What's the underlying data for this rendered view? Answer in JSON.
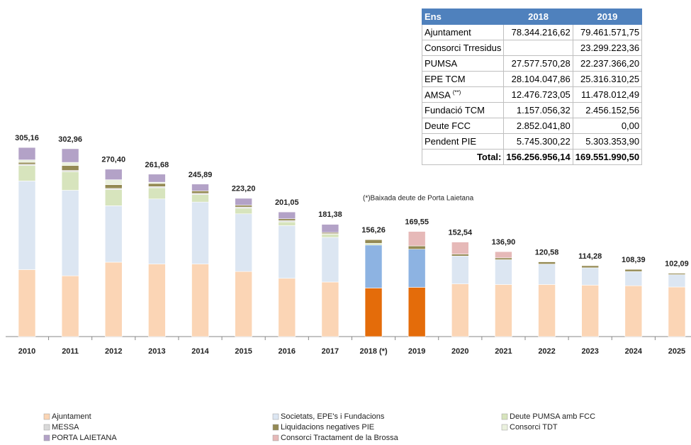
{
  "chart_data": {
    "type": "stacked-bar",
    "categories": [
      "2010",
      "2011",
      "2012",
      "2013",
      "2014",
      "2015",
      "2016",
      "2017",
      "2018 (*)",
      "2019",
      "2020",
      "2021",
      "2022",
      "2023",
      "2024",
      "2025"
    ],
    "totals": [
      305.16,
      302.96,
      270.4,
      261.68,
      245.89,
      223.2,
      201.05,
      181.38,
      156.26,
      169.55,
      152.54,
      136.9,
      120.58,
      114.28,
      108.39,
      102.09
    ],
    "total_labels": [
      "305,16",
      "302,96",
      "270,40",
      "261,68",
      "245,89",
      "223,20",
      "201,05",
      "181,38",
      "156,26",
      "169,55",
      "152,54",
      "136,90",
      "120,58",
      "114,28",
      "108,39",
      "102,09"
    ],
    "annotation": "(*)Baixada deute de Porta Laietana",
    "series": [
      {
        "name": "Ajuntament",
        "color": "#fbd5b5",
        "values": [
          108,
          98,
          120,
          117,
          117,
          105,
          94,
          88,
          78.34,
          79.46,
          85,
          84,
          84,
          83,
          82,
          80
        ],
        "colors": [
          "#fbd5b5",
          "#fbd5b5",
          "#fbd5b5",
          "#fbd5b5",
          "#fbd5b5",
          "#fbd5b5",
          "#fbd5b5",
          "#fbd5b5",
          "#e46c0a",
          "#e46c0a",
          "#fbd5b5",
          "#fbd5b5",
          "#fbd5b5",
          "#fbd5b5",
          "#fbd5b5",
          "#fbd5b5"
        ]
      },
      {
        "name": "Societats, EPE's i Fundacions",
        "color": "#dce6f2",
        "values": [
          143,
          138,
          91,
          105,
          100,
          93,
          85,
          72,
          69.32,
          61.5,
          45,
          40,
          33,
          28,
          23,
          20
        ],
        "colors": [
          "#dce6f2",
          "#dce6f2",
          "#dce6f2",
          "#dce6f2",
          "#dce6f2",
          "#dce6f2",
          "#dce6f2",
          "#dce6f2",
          "#8db3e2",
          "#8db3e2",
          "#dce6f2",
          "#dce6f2",
          "#dce6f2",
          "#dce6f2",
          "#dce6f2",
          "#dce6f2"
        ]
      },
      {
        "name": "Deute PUMSA amb FCC",
        "color": "#d7e4bd",
        "values": [
          25,
          30,
          26,
          18,
          12,
          9,
          6,
          5,
          2.85,
          0,
          0,
          0,
          0,
          0,
          0,
          0
        ]
      },
      {
        "name": "MESSA",
        "color": "#d9d9d9",
        "values": [
          2,
          2,
          2,
          2,
          2,
          2,
          2,
          1,
          0,
          0,
          0,
          0,
          0,
          0,
          0,
          0
        ]
      },
      {
        "name": "Liquidacions negatives PIE",
        "color": "#948a54",
        "values": [
          3,
          8,
          6,
          5,
          4,
          3,
          3,
          2,
          5.75,
          5.3,
          3,
          3,
          3.5,
          3.3,
          3.4,
          2
        ]
      },
      {
        "name": "Consorci TDT",
        "color": "#ebf1de",
        "values": [
          4,
          5,
          8,
          2,
          0,
          0,
          0,
          0,
          0,
          0,
          0,
          0,
          0,
          0,
          0,
          0
        ]
      },
      {
        "name": "PORTA LAIETANA",
        "color": "#b3a2c7",
        "values": [
          20,
          22,
          17,
          13,
          11,
          11,
          11,
          13,
          0,
          0,
          0,
          0,
          0,
          0,
          0,
          0
        ]
      },
      {
        "name": "Consorci Tractament de la Brossa",
        "color": "#e6b9b8",
        "values": [
          0,
          0,
          0,
          0,
          0,
          0,
          0,
          0,
          0,
          23.3,
          19.5,
          10,
          0,
          0,
          0,
          0
        ]
      }
    ]
  },
  "table": {
    "header": [
      "Ens",
      "2018",
      "2019"
    ],
    "rows": [
      [
        "Ajuntament",
        "78.344.216,62",
        "79.461.571,75"
      ],
      [
        "Consorci Trresidus",
        "",
        "23.299.223,36"
      ],
      [
        "PUMSA",
        "27.577.570,28",
        "22.237.366,20"
      ],
      [
        "EPE TCM",
        "28.104.047,86",
        "25.316.310,25"
      ],
      [
        "AMSA",
        "12.476.723,05",
        "11.478.012,49"
      ],
      [
        "Fundació TCM",
        "1.157.056,32",
        "2.456.152,56"
      ],
      [
        "Deute FCC",
        "2.852.041,80",
        "0,00"
      ],
      [
        "Pendent PIE",
        "5.745.300,22",
        "5.303.353,90"
      ]
    ],
    "note": "(**)",
    "total": [
      "Total:",
      "156.256.956,14",
      "169.551.990,50"
    ]
  }
}
